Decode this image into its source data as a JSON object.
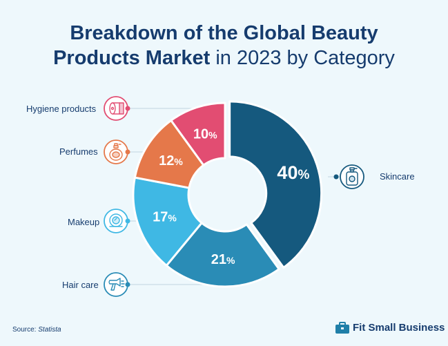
{
  "title": {
    "bold_line1": "Breakdown of the Global Beauty",
    "bold_line2": "Products Market",
    "light_line2": " in 2023 by Category"
  },
  "chart_data": {
    "type": "pie",
    "variant": "donut",
    "categories": [
      "Skincare",
      "Hair care",
      "Makeup",
      "Perfumes",
      "Hygiene products"
    ],
    "values": [
      40,
      21,
      17,
      12,
      10
    ],
    "value_labels": [
      "40",
      "21",
      "17",
      "12",
      "10"
    ],
    "unit": "%",
    "colors": [
      "#15597e",
      "#2a8cb6",
      "#3fb8e4",
      "#e5784a",
      "#e24d72"
    ],
    "icons": [
      "lotion-bottle-icon",
      "hair-dryer-icon",
      "compact-mirror-icon",
      "perfume-bottle-icon",
      "toilet-paper-icon"
    ],
    "title": "Breakdown of the Global Beauty Products Market in 2023 by Category"
  },
  "source": {
    "prefix": "Source: ",
    "name": "Statista"
  },
  "brand": {
    "name": "Fit Small Business"
  }
}
